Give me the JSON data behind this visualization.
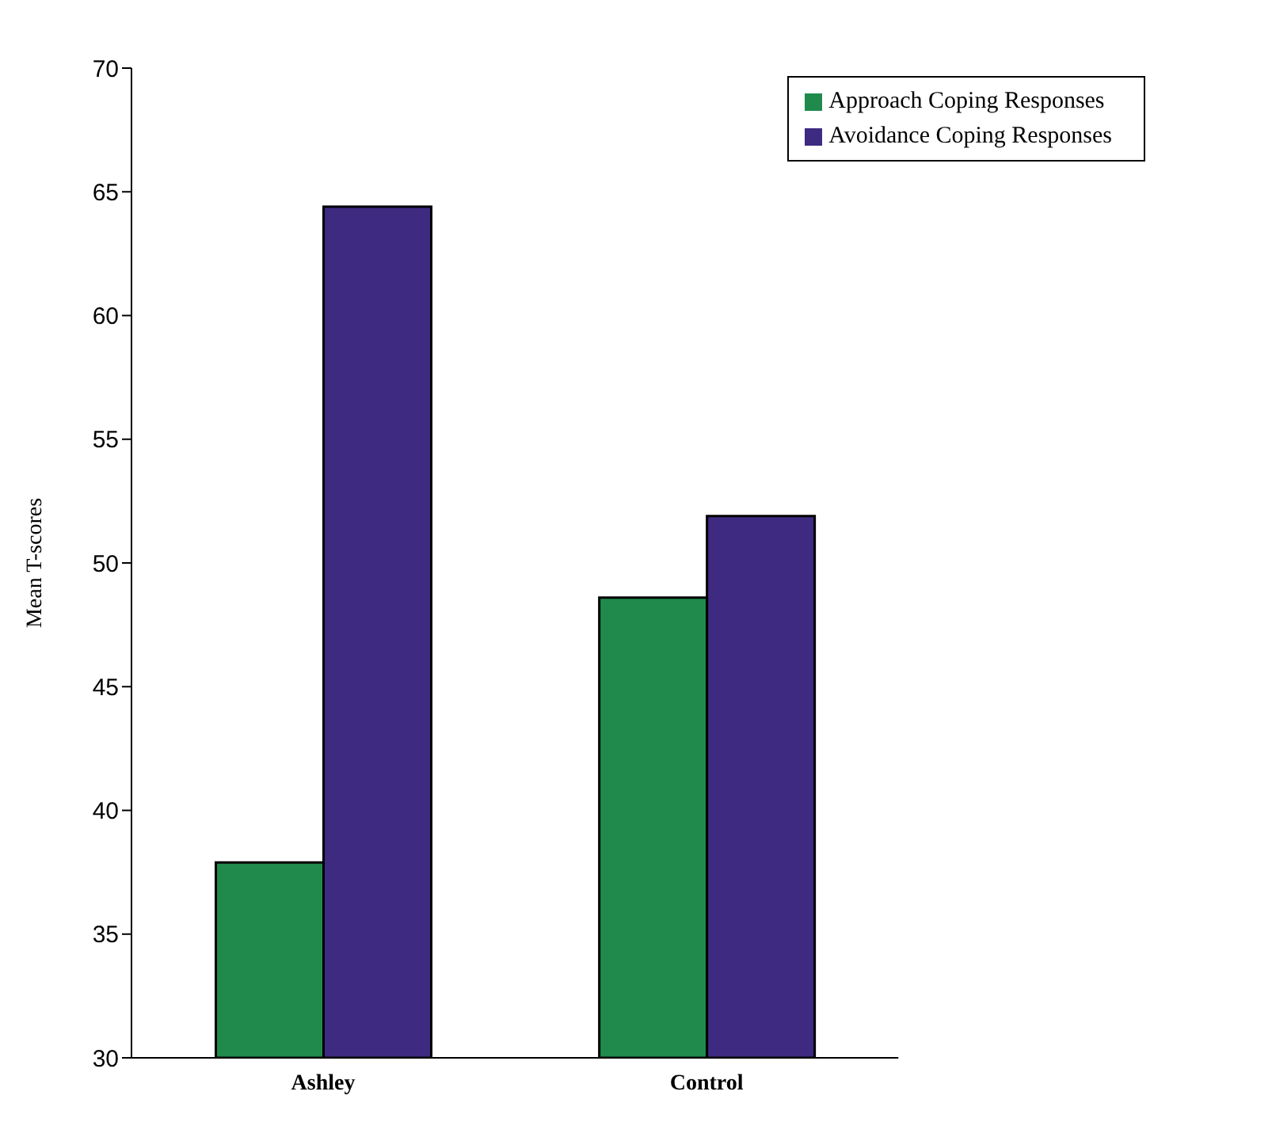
{
  "chart_data": {
    "type": "bar",
    "ylabel": "Mean T-scores",
    "categories": [
      "Ashley",
      "Control"
    ],
    "series": [
      {
        "name": "Approach Coping Responses",
        "color": "#1f8a4c",
        "values": [
          37.9,
          48.6
        ]
      },
      {
        "name": "Avoidance Coping Responses",
        "color": "#3f2a82",
        "values": [
          64.4,
          51.9
        ]
      }
    ],
    "ylim": [
      30,
      70
    ],
    "yticks": [
      30,
      35,
      40,
      45,
      50,
      55,
      60,
      65,
      70
    ],
    "grid": false,
    "legend": "top right"
  }
}
